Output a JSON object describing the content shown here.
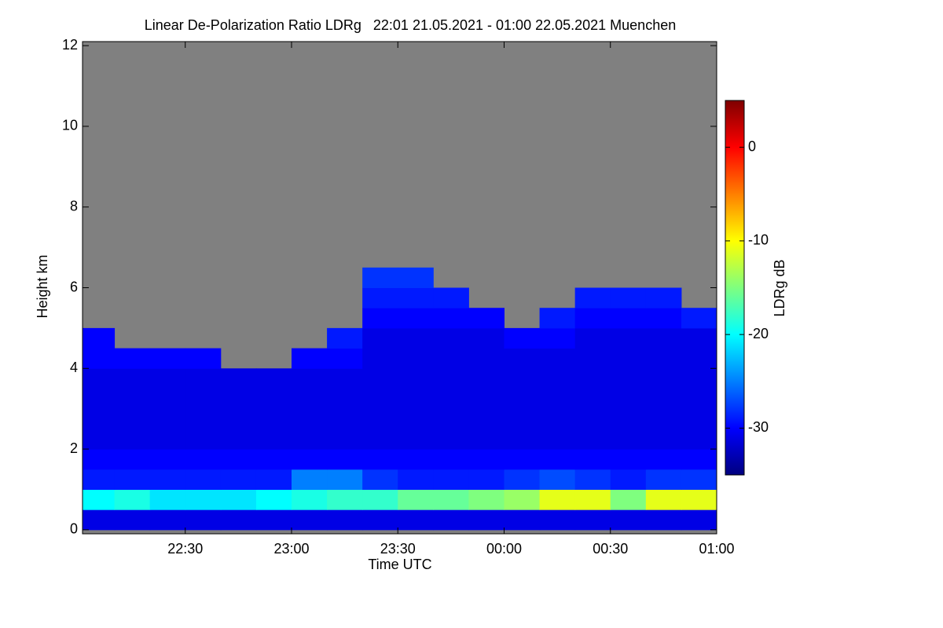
{
  "chart_data": {
    "type": "heatmap",
    "title": "Linear De-Polarization Ratio LDRg   22:01 21.05.2021 - 01:00 22.05.2021 Muenchen",
    "xlabel": "Time UTC",
    "ylabel": "Height km",
    "zlabel": "LDRg dB",
    "xlim": [
      1,
      180
    ],
    "xticks": [
      {
        "value": 30,
        "label": "22:30"
      },
      {
        "value": 60,
        "label": "23:00"
      },
      {
        "value": 90,
        "label": "23:30"
      },
      {
        "value": 120,
        "label": "00:00"
      },
      {
        "value": 150,
        "label": "00:30"
      },
      {
        "value": 180,
        "label": "01:00"
      }
    ],
    "ylim": [
      -0.1,
      12.1
    ],
    "yticks": [
      0,
      2,
      4,
      6,
      8,
      10,
      12
    ],
    "zlim": [
      -35,
      5
    ],
    "zticks": [
      0,
      -10,
      -20,
      -30
    ],
    "colormap": [
      "#00007f",
      "#0000ff",
      "#007fff",
      "#00ffff",
      "#7fff7f",
      "#ffff00",
      "#ff7f00",
      "#ff0000",
      "#7f0000"
    ],
    "missing_color": "#808080",
    "xbins": [
      0,
      10,
      20,
      30,
      40,
      50,
      60,
      70,
      80,
      90,
      100,
      110,
      120,
      130,
      140,
      150,
      160,
      170,
      180
    ],
    "ybins": [
      0,
      0.5,
      1,
      1.5,
      2,
      2.5,
      3,
      3.5,
      4,
      4.5,
      5,
      5.5,
      6,
      6.5,
      7
    ],
    "z": [
      [
        -31,
        -31,
        -31,
        -31,
        -31,
        -31,
        -31,
        -31,
        -31,
        -31,
        -31,
        -31,
        -31,
        -31,
        -31,
        -31,
        -31,
        -31
      ],
      [
        -20,
        -19,
        -21,
        -21,
        -21,
        -20,
        -19,
        -18,
        -18,
        -16,
        -16,
        -15,
        -14,
        -11,
        -11,
        -15,
        -11,
        -11
      ],
      [
        -29,
        -29,
        -29,
        -29,
        -29,
        -29,
        -25,
        -25,
        -28,
        -29,
        -29,
        -29,
        -28,
        -27,
        -28,
        -29,
        -28,
        -28
      ],
      [
        -30,
        -30,
        -30,
        -30,
        -30,
        -30,
        -30,
        -30,
        -30,
        -30,
        -30,
        -30,
        -30,
        -30,
        -30,
        -30,
        -30,
        -30
      ],
      [
        -31,
        -31,
        -31,
        -31,
        -31,
        -31,
        -31,
        -31,
        -31,
        -31,
        -31,
        -31,
        -31,
        -31,
        -31,
        -31,
        -31,
        -31
      ],
      [
        -31,
        -31,
        -31,
        -31,
        -31,
        -31,
        -31,
        -31,
        -31,
        -31,
        -31,
        -31,
        -31,
        -31,
        -31,
        -31,
        -31,
        -31
      ],
      [
        -31,
        -31,
        -31,
        -31,
        -31,
        -31,
        -31,
        -31,
        -31,
        -31,
        -31,
        -31,
        -31,
        -31,
        -31,
        -31,
        -31,
        -31
      ],
      [
        -31,
        -31,
        -31,
        -31,
        -31,
        -31,
        -31,
        -31,
        -31,
        -31,
        -31,
        -31,
        -31,
        -31,
        -31,
        -31,
        -31,
        -31
      ],
      [
        -30,
        -30,
        -30,
        -30,
        null,
        null,
        -30,
        -30,
        -31,
        -31,
        -31,
        -31,
        -31,
        -31,
        -31,
        -31,
        -31,
        -31
      ],
      [
        -30,
        null,
        null,
        null,
        null,
        null,
        null,
        -29,
        -31,
        -31,
        -31,
        -31,
        -30,
        -30,
        -31,
        -31,
        -31,
        -31
      ],
      [
        null,
        null,
        null,
        null,
        null,
        null,
        null,
        null,
        -30,
        -30,
        -30,
        -30,
        null,
        -29,
        -30,
        -30,
        -30,
        -29
      ],
      [
        null,
        null,
        null,
        null,
        null,
        null,
        null,
        null,
        -29,
        -29,
        -29,
        null,
        null,
        null,
        -29,
        -29,
        -29,
        null
      ],
      [
        null,
        null,
        null,
        null,
        null,
        null,
        null,
        null,
        -28,
        -28,
        null,
        null,
        null,
        null,
        null,
        null,
        null,
        null
      ],
      [
        null,
        null,
        null,
        null,
        null,
        null,
        null,
        null,
        null,
        null,
        null,
        null,
        null,
        null,
        null,
        null,
        null,
        null
      ]
    ]
  }
}
